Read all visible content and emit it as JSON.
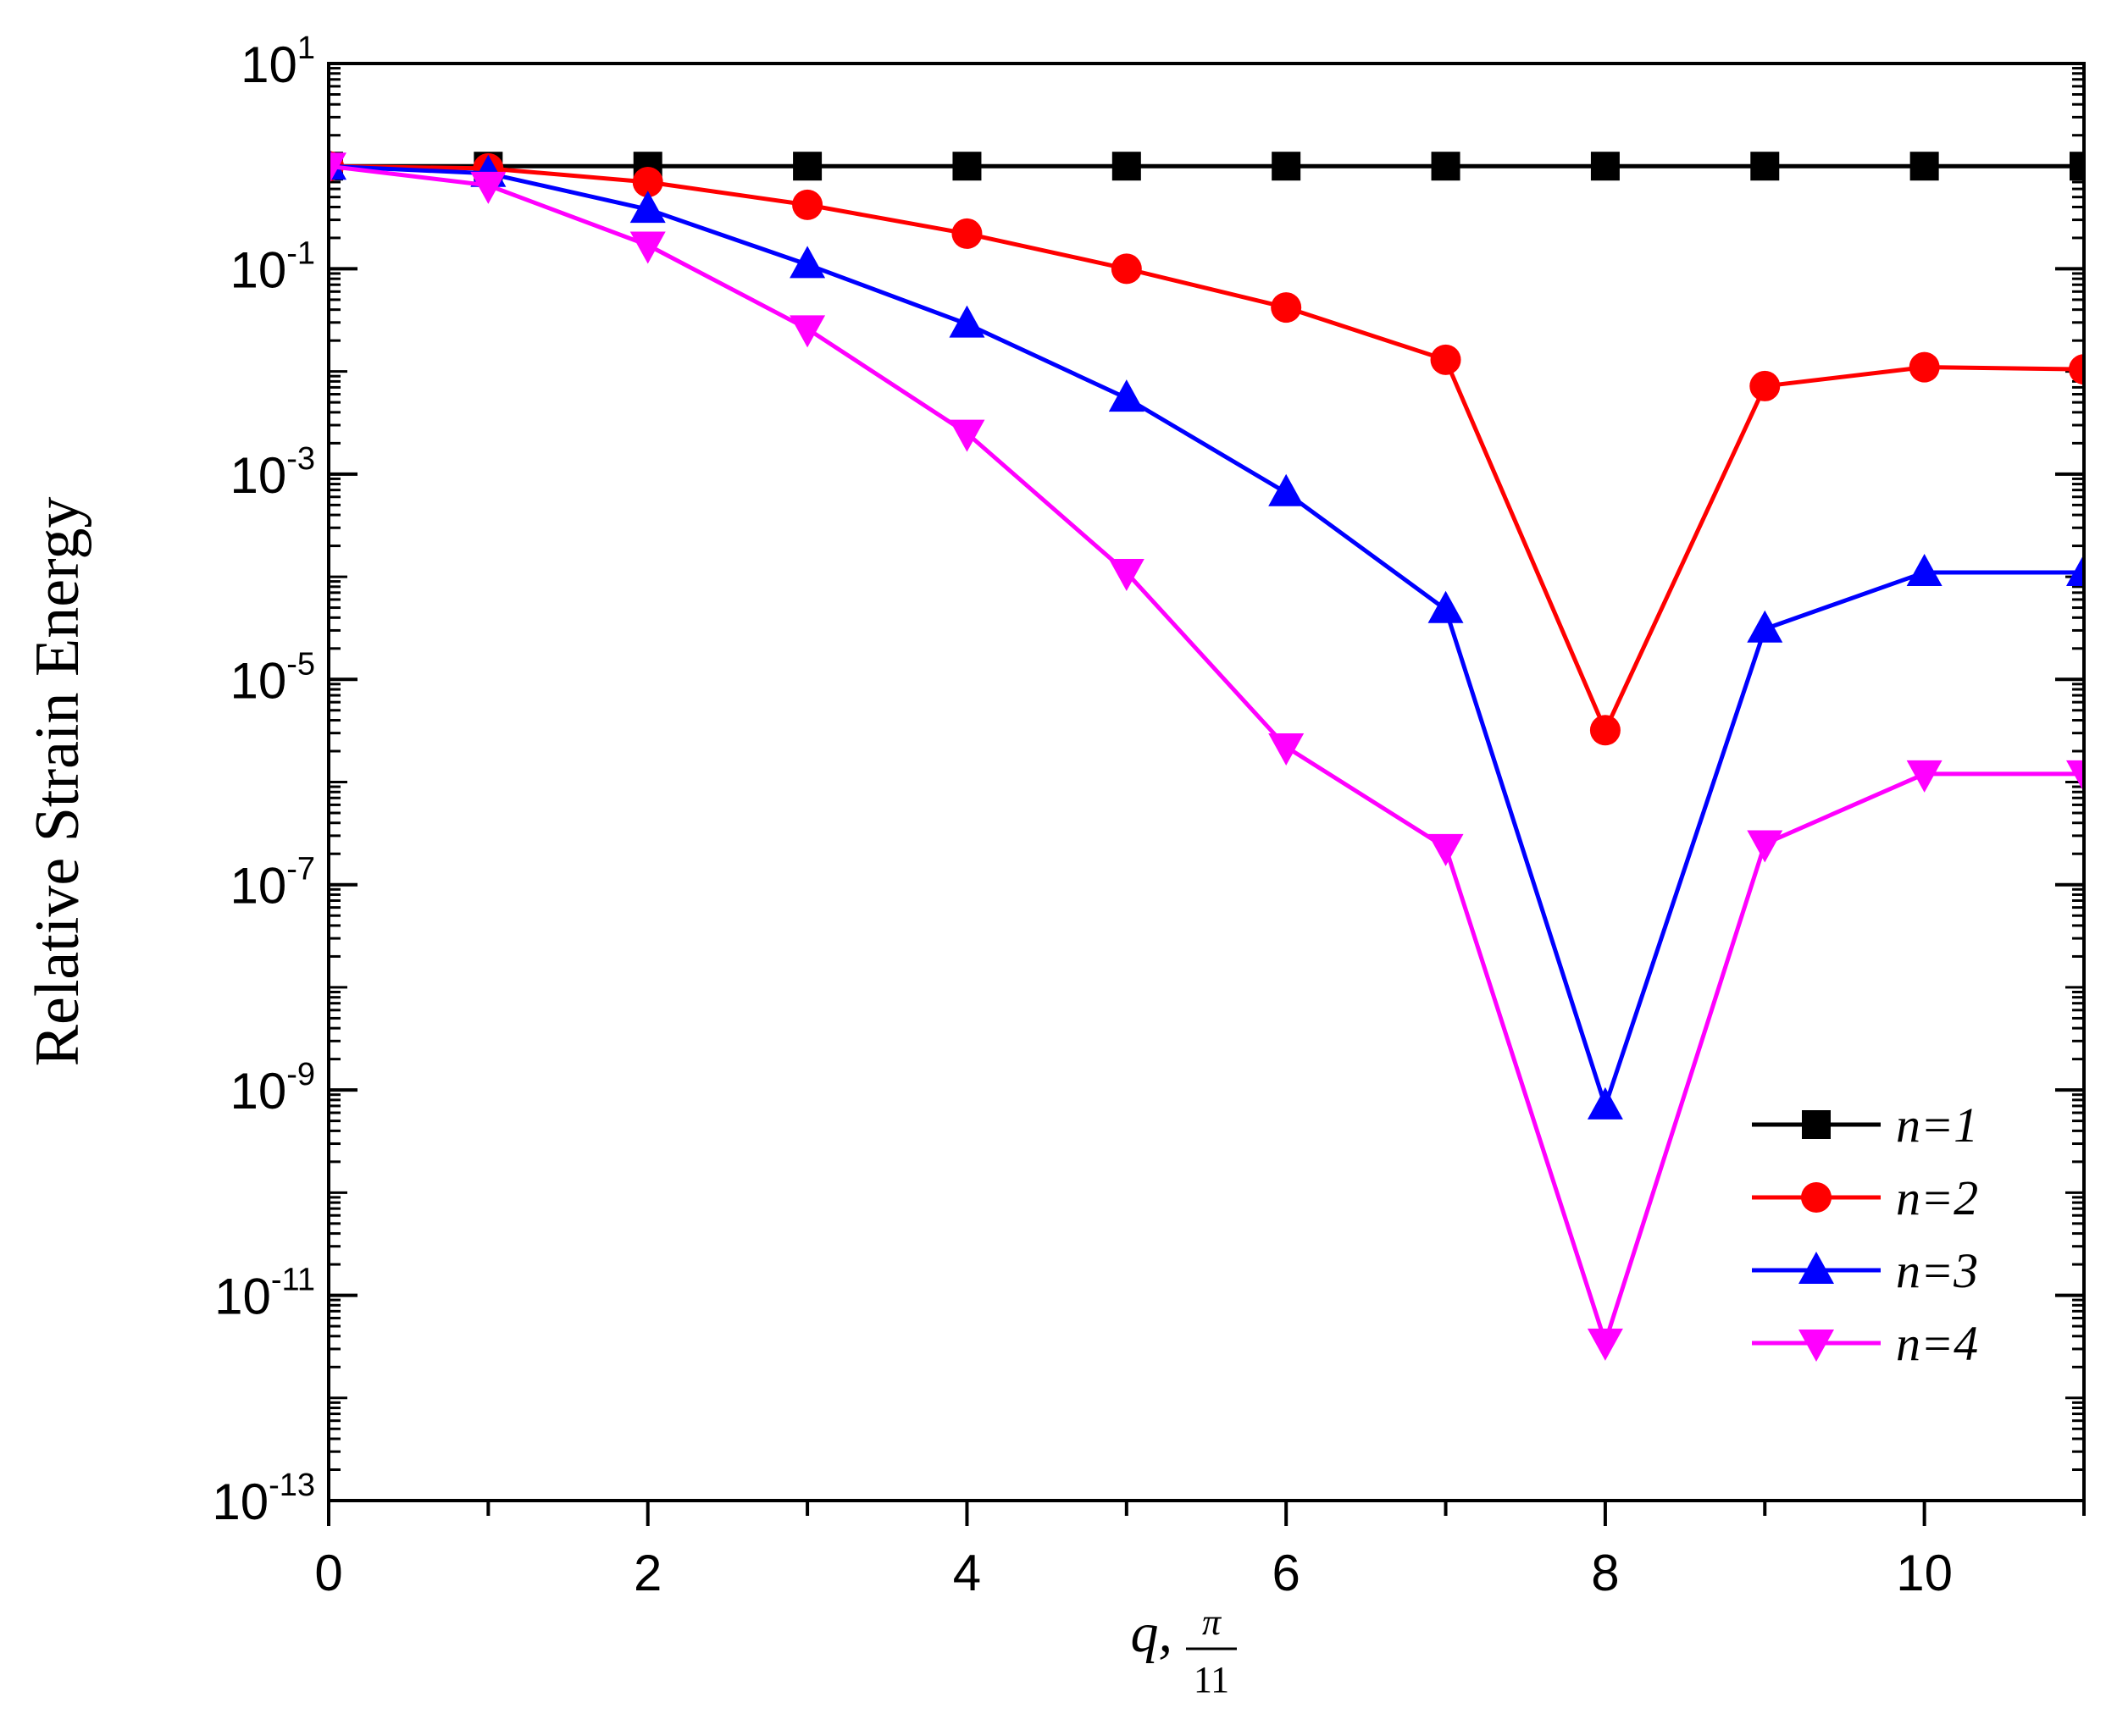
{
  "chart_data": {
    "type": "line",
    "title": "",
    "xlabel": "q,",
    "xlabel_fraction": {
      "numerator": "π",
      "denominator": "11"
    },
    "ylabel": "Relative Strain Energy",
    "xlim": [
      0,
      11
    ],
    "ylim_log10": [
      -13,
      1
    ],
    "yscale": "log",
    "x_ticks": [
      0,
      2,
      4,
      6,
      8,
      10
    ],
    "x_tick_labels": [
      "0",
      "2",
      "4",
      "6",
      "8",
      "10"
    ],
    "y_tick_labels": [
      {
        "base": "10",
        "exp": "1"
      },
      {
        "base": "10",
        "exp": "-1"
      },
      {
        "base": "10",
        "exp": "-3"
      },
      {
        "base": "10",
        "exp": "-5"
      },
      {
        "base": "10",
        "exp": "-7"
      },
      {
        "base": "10",
        "exp": "-9"
      },
      {
        "base": "10",
        "exp": "-11"
      },
      {
        "base": "10",
        "exp": "-13"
      }
    ],
    "y_tick_exponents": [
      1,
      -1,
      -3,
      -5,
      -7,
      -9,
      -11,
      -13
    ],
    "legend_position": "bottom-right",
    "x": [
      0,
      1,
      2,
      3,
      4,
      5,
      6,
      7,
      8,
      9,
      10,
      11
    ],
    "series": [
      {
        "name": "n=1",
        "color": "#000000",
        "marker": "square",
        "values": [
          1,
          1,
          1,
          1,
          1,
          1,
          1,
          1,
          1,
          1,
          1,
          1
        ]
      },
      {
        "name": "n=2",
        "color": "#ff0000",
        "marker": "circle",
        "values": [
          1,
          0.95,
          0.7,
          0.42,
          0.22,
          0.1,
          0.042,
          0.013,
          3.2e-06,
          0.0072,
          0.011,
          0.0105
        ]
      },
      {
        "name": "n=3",
        "color": "#0000ff",
        "marker": "triangle-up",
        "values": [
          1,
          0.85,
          0.38,
          0.11,
          0.029,
          0.0055,
          0.00066,
          4.8e-05,
          7e-10,
          3.1e-05,
          0.00011,
          0.00011
        ]
      },
      {
        "name": "n=4",
        "color": "#ff00ff",
        "marker": "triangle-down",
        "values": [
          1,
          0.65,
          0.17,
          0.026,
          0.0025,
          0.00011,
          2.2e-06,
          2.3e-07,
          3.5e-12,
          2.5e-07,
          1.2e-06,
          1.2e-06
        ]
      }
    ]
  }
}
